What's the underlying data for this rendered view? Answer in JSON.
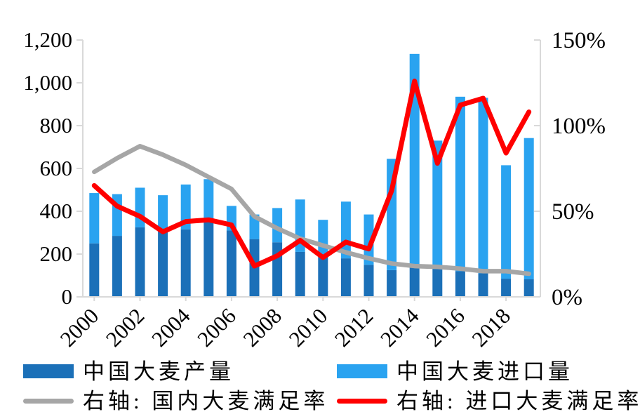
{
  "chart_data": {
    "type": "bar",
    "subtype": "stacked-bars-with-dual-axis-lines",
    "title": "",
    "categories": [
      "2000",
      "2001",
      "2002",
      "2003",
      "2004",
      "2005",
      "2006",
      "2007",
      "2008",
      "2009",
      "2010",
      "2011",
      "2012",
      "2013",
      "2014",
      "2015",
      "2016",
      "2017",
      "2018",
      "2019"
    ],
    "series": [
      {
        "name": "中国大麦产量",
        "kind": "bar",
        "stack": "supply",
        "axis": "left",
        "color": "#1b70b8",
        "values": [
          250,
          285,
          325,
          320,
          315,
          350,
          310,
          270,
          255,
          210,
          190,
          180,
          150,
          125,
          145,
          135,
          120,
          110,
          85,
          82
        ]
      },
      {
        "name": "中国大麦进口量",
        "kind": "bar",
        "stack": "supply",
        "axis": "left",
        "color": "#2aa3f0",
        "values": [
          235,
          195,
          185,
          155,
          210,
          200,
          115,
          115,
          160,
          245,
          170,
          265,
          235,
          520,
          990,
          595,
          815,
          820,
          530,
          660
        ]
      },
      {
        "name": "右轴: 国内大麦满足率",
        "kind": "line",
        "axis": "right",
        "color": "#a6a6a6",
        "values": [
          73,
          81,
          88,
          83,
          77,
          70,
          63,
          47,
          40,
          34,
          30,
          26,
          22.5,
          19.5,
          18,
          17.5,
          16.5,
          15,
          15,
          13.5
        ]
      },
      {
        "name": "右轴: 进口大麦满足率",
        "kind": "line",
        "axis": "right",
        "color": "#ff0000",
        "values": [
          65,
          53,
          47,
          38,
          44,
          45,
          42,
          18,
          24,
          33,
          23,
          32,
          28,
          62,
          126,
          78,
          112,
          116,
          84,
          108
        ]
      }
    ],
    "left_axis": {
      "min": 0,
      "max": 1200,
      "ticks": [
        {
          "value": 0,
          "label": "0"
        },
        {
          "value": 200,
          "label": "200"
        },
        {
          "value": 400,
          "label": "400"
        },
        {
          "value": 600,
          "label": "600"
        },
        {
          "value": 800,
          "label": "800"
        },
        {
          "value": 1000,
          "label": "1,000"
        },
        {
          "value": 1200,
          "label": "1,200"
        }
      ]
    },
    "right_axis": {
      "min": 0,
      "max": 150,
      "ticks": [
        {
          "value": 0,
          "label": "0%"
        },
        {
          "value": 50,
          "label": "50%"
        },
        {
          "value": 100,
          "label": "100%"
        },
        {
          "value": 150,
          "label": "150%"
        }
      ]
    },
    "x_tick_labels": [
      "2000",
      "2002",
      "2004",
      "2006",
      "2008",
      "2010",
      "2012",
      "2014",
      "2016",
      "2018"
    ],
    "grid": false,
    "legend_position": "bottom"
  },
  "legend": {
    "items": [
      {
        "label": "中国大麦产量",
        "swatch": "bar",
        "color": "#1b70b8"
      },
      {
        "label": "中国大麦进口量",
        "swatch": "bar",
        "color": "#2aa3f0"
      },
      {
        "label": "右轴: 国内大麦满足率",
        "swatch": "line",
        "color": "#a6a6a6"
      },
      {
        "label": "右轴: 进口大麦满足率",
        "swatch": "line",
        "color": "#ff0000"
      }
    ]
  },
  "style": {
    "axis_color": "#d9d9d9",
    "background": "#ffffff"
  }
}
